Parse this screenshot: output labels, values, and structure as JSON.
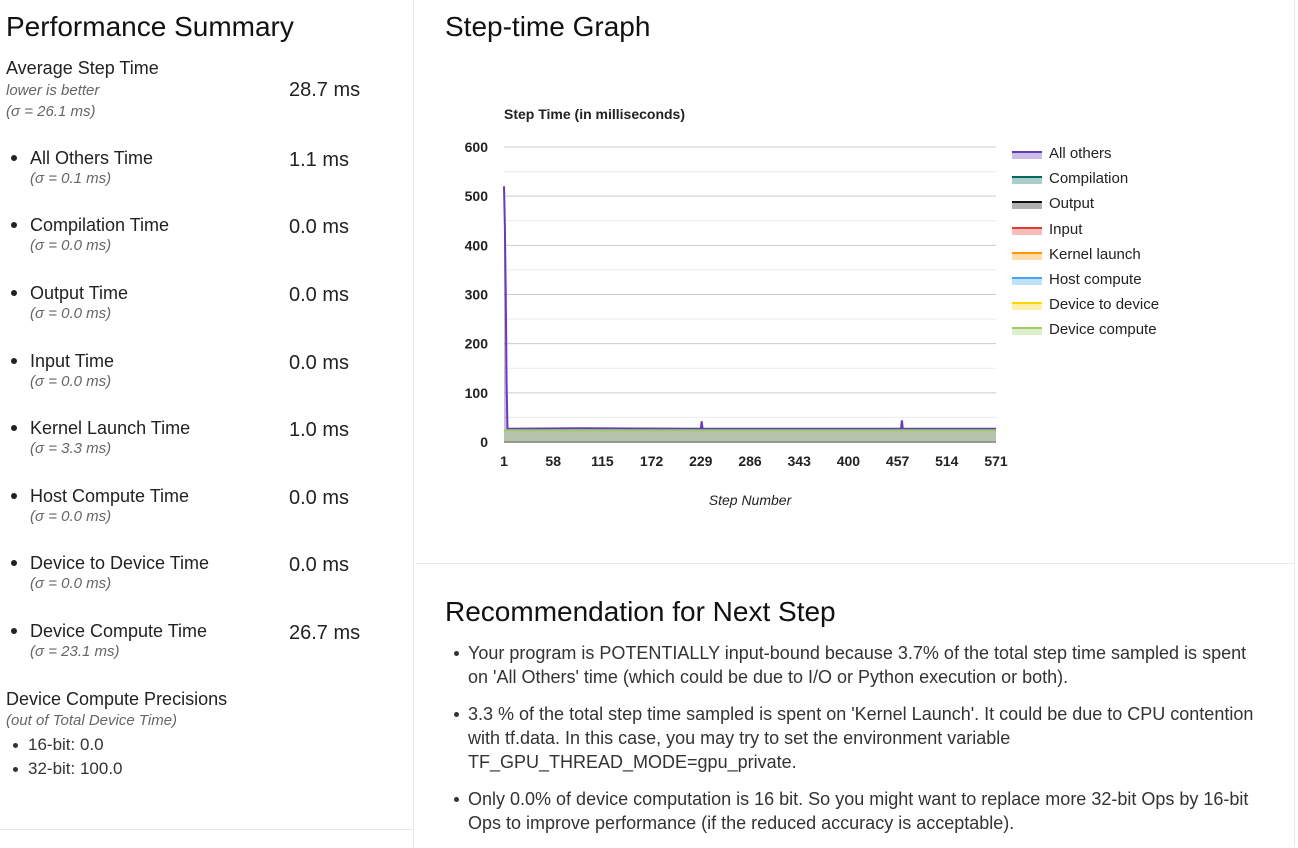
{
  "summary": {
    "title": "Performance Summary",
    "average": {
      "label": "Average Step Time",
      "note": "lower is better",
      "sigma": "(σ = 26.1 ms)",
      "value": "28.7 ms"
    },
    "metrics": [
      {
        "label": "All Others Time",
        "sigma": "(σ = 0.1 ms)",
        "value": "1.1 ms"
      },
      {
        "label": "Compilation Time",
        "sigma": "(σ = 0.0 ms)",
        "value": "0.0 ms"
      },
      {
        "label": "Output Time",
        "sigma": "(σ = 0.0 ms)",
        "value": "0.0 ms"
      },
      {
        "label": "Input Time",
        "sigma": "(σ = 0.0 ms)",
        "value": "0.0 ms"
      },
      {
        "label": "Kernel Launch Time",
        "sigma": "(σ = 3.3 ms)",
        "value": "1.0 ms"
      },
      {
        "label": "Host Compute Time",
        "sigma": "(σ = 0.0 ms)",
        "value": "0.0 ms"
      },
      {
        "label": "Device to Device Time",
        "sigma": "(σ = 0.0 ms)",
        "value": "0.0 ms"
      },
      {
        "label": "Device Compute Time",
        "sigma": "(σ = 23.1 ms)",
        "value": "26.7 ms"
      }
    ],
    "precisions": {
      "title": "Device Compute Precisions",
      "note": "(out of Total Device Time)",
      "items": [
        "16-bit: 0.0",
        "32-bit: 100.0"
      ]
    }
  },
  "graph": {
    "title": "Step-time Graph"
  },
  "chart_data": {
    "type": "area",
    "title": "Step Time (in milliseconds)",
    "xlabel": "Step Number",
    "ylabel": "",
    "ylim": [
      0,
      600
    ],
    "xlim": [
      1,
      571
    ],
    "y_ticks": [
      "0",
      "100",
      "200",
      "300",
      "400",
      "500",
      "600"
    ],
    "x_ticks": [
      "1",
      "58",
      "115",
      "172",
      "229",
      "286",
      "343",
      "400",
      "457",
      "514",
      "571"
    ],
    "grid": true,
    "legend_position": "right",
    "series": [
      {
        "name": "All others",
        "color": "#673ab7",
        "points": [
          [
            1,
            520
          ],
          [
            2,
            440
          ],
          [
            3,
            300
          ],
          [
            4,
            120
          ],
          [
            5,
            27
          ],
          [
            90,
            28
          ],
          [
            229,
            27
          ],
          [
            230,
            42
          ],
          [
            231,
            27
          ],
          [
            461,
            27
          ],
          [
            462,
            44
          ],
          [
            463,
            27
          ],
          [
            571,
            27
          ]
        ]
      },
      {
        "name": "Compilation",
        "color": "#00695c"
      },
      {
        "name": "Output",
        "color": "#111111"
      },
      {
        "name": "Input",
        "color": "#e53935"
      },
      {
        "name": "Kernel launch",
        "color": "#ff9800"
      },
      {
        "name": "Host compute",
        "color": "#42a5f5"
      },
      {
        "name": "Device to device",
        "color": "#ffd600"
      },
      {
        "name": "Device compute",
        "color": "#9ccc65",
        "points": [
          [
            1,
            24
          ],
          [
            571,
            24
          ]
        ]
      }
    ]
  },
  "recommendation": {
    "title": "Recommendation for Next Step",
    "items": [
      "Your program is POTENTIALLY input-bound because 3.7% of the total step time sampled is spent on 'All Others' time (which could be due to I/O or Python execution or both).",
      "3.3 % of the total step time sampled is spent on 'Kernel Launch'. It could be due to CPU contention with tf.data. In this case, you may try to set the environment variable TF_GPU_THREAD_MODE=gpu_private.",
      "Only 0.0% of device computation is 16 bit. So you might want to replace more 32-bit Ops by 16-bit Ops to improve performance (if the reduced accuracy is acceptable)."
    ]
  }
}
